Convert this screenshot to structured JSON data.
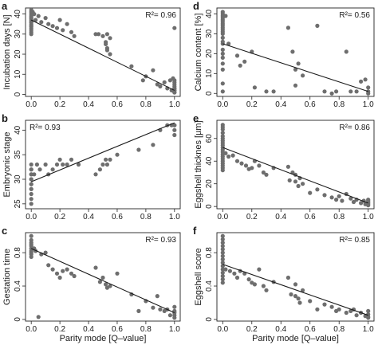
{
  "figure": {
    "x_tick_labels": [
      "0.0",
      "0.2",
      "0.4",
      "0.6",
      "0.8",
      "1.0"
    ],
    "x_label": "Parity mode [Q–value]"
  },
  "chart_data": [
    {
      "type": "scatter",
      "panel_letter": "a",
      "ylabel": "Incubation days [N]",
      "xlabel": "",
      "r2_label": "R²= 0.96",
      "xlim": [
        -0.04,
        1.04
      ],
      "ylim": [
        -1,
        43
      ],
      "yticks": [
        0,
        10,
        20,
        30,
        40
      ],
      "x_ticks": [
        0.0,
        0.2,
        0.4,
        0.6,
        0.8,
        1.0
      ],
      "grid": false,
      "trend_line": {
        "x": [
          0.0,
          1.0
        ],
        "y": [
          37,
          2
        ]
      },
      "points": {
        "x": [
          0.0,
          0.0,
          0.0,
          0.0,
          0.0,
          0.0,
          0.0,
          0.0,
          0.0,
          0.0,
          0.0,
          0.0,
          0.0,
          0.0,
          0.0,
          0.0,
          0.01,
          0.02,
          0.03,
          0.05,
          0.07,
          0.1,
          0.12,
          0.15,
          0.18,
          0.2,
          0.22,
          0.25,
          0.28,
          0.3,
          0.45,
          0.47,
          0.5,
          0.52,
          0.53,
          0.55,
          0.52,
          0.53,
          0.53,
          0.55,
          0.7,
          0.78,
          0.8,
          0.85,
          0.88,
          0.9,
          0.93,
          0.95,
          0.97,
          0.98,
          0.99,
          1.0,
          1.0,
          1.0,
          1.0,
          1.0,
          1.0,
          1.0,
          1.0,
          1.0,
          1.0,
          1.0
        ],
        "y": [
          42,
          41,
          40,
          39,
          38,
          37,
          36,
          35,
          34,
          33,
          32,
          31,
          30,
          38,
          36,
          34,
          41,
          40,
          37,
          39,
          36,
          38,
          35,
          34,
          33,
          37,
          32,
          35,
          31,
          29,
          30,
          30,
          29,
          25,
          23,
          20,
          26,
          22,
          30,
          28,
          14,
          7,
          9,
          12,
          5,
          4,
          6,
          3,
          7,
          2,
          8,
          4,
          3,
          2,
          1,
          5,
          6,
          2,
          3,
          1,
          7,
          33
        ]
      }
    },
    {
      "type": "scatter",
      "panel_letter": "d",
      "ylabel": "Calcium content [%]",
      "xlabel": "",
      "r2_label": "R²= 0.56",
      "xlim": [
        -0.04,
        1.04
      ],
      "ylim": [
        -1.5,
        43
      ],
      "yticks": [
        0,
        10,
        20,
        30,
        40
      ],
      "x_ticks": [
        0.0,
        0.2,
        0.4,
        0.6,
        0.8,
        1.0
      ],
      "grid": false,
      "trend_line": {
        "x": [
          0.0,
          1.0
        ],
        "y": [
          25,
          1
        ]
      },
      "points": {
        "x": [
          0.0,
          0.0,
          0.0,
          0.0,
          0.0,
          0.0,
          0.0,
          0.0,
          0.0,
          0.0,
          0.0,
          0.0,
          0.0,
          0.0,
          0.0,
          0.0,
          0.0,
          0.0,
          0.0,
          0.0,
          0.0,
          0.0,
          0.02,
          0.04,
          0.1,
          0.12,
          0.15,
          0.2,
          0.22,
          0.3,
          0.35,
          0.45,
          0.48,
          0.5,
          0.5,
          0.52,
          0.55,
          0.65,
          0.7,
          0.75,
          0.78,
          0.85,
          0.88,
          0.92,
          0.95,
          0.98,
          1.0,
          1.0,
          1.0
        ],
        "y": [
          41,
          40,
          39,
          38,
          37,
          36,
          35,
          34,
          33,
          32,
          31,
          30,
          28,
          26,
          25,
          22,
          20,
          18,
          15,
          12,
          5,
          1,
          39,
          25,
          19,
          14,
          16,
          21,
          3,
          1,
          1,
          33,
          21,
          12,
          4,
          15,
          9,
          34,
          1,
          0,
          1,
          21,
          1,
          1,
          6,
          7,
          3,
          1,
          0
        ]
      }
    },
    {
      "type": "scatter",
      "panel_letter": "b",
      "ylabel": "Embryonic stage",
      "xlabel": "",
      "r2_label": "R²= 0.93",
      "xlim": [
        -0.04,
        1.04
      ],
      "ylim": [
        24,
        42
      ],
      "yticks": [
        25,
        30,
        35,
        40
      ],
      "x_ticks": [
        0.0,
        0.2,
        0.4,
        0.6,
        0.8,
        1.0
      ],
      "grid": false,
      "trend_line": {
        "x": [
          0.0,
          1.0
        ],
        "y": [
          29.5,
          41.5
        ]
      },
      "points": {
        "x": [
          0.0,
          0.0,
          0.0,
          0.0,
          0.0,
          0.0,
          0.0,
          0.0,
          0.0,
          0.0,
          0.0,
          0.0,
          0.0,
          0.0,
          0.02,
          0.04,
          0.06,
          0.1,
          0.12,
          0.15,
          0.18,
          0.2,
          0.22,
          0.25,
          0.28,
          0.33,
          0.45,
          0.48,
          0.5,
          0.52,
          0.53,
          0.55,
          0.6,
          0.75,
          0.85,
          0.9,
          0.95,
          0.98,
          1.0,
          1.0,
          1.0,
          1.0
        ],
        "y": [
          25,
          26,
          27,
          28,
          29,
          30,
          31,
          32,
          33,
          30,
          29,
          28,
          31,
          32,
          31,
          33,
          32,
          33,
          31,
          32,
          33,
          34,
          33,
          33,
          34,
          33,
          31,
          32,
          33,
          34,
          33,
          34,
          35,
          36,
          37,
          40,
          41,
          41,
          41,
          40,
          41,
          39
        ]
      }
    },
    {
      "type": "scatter",
      "panel_letter": "e",
      "ylabel": "Eggshell thicknes [µm]",
      "xlabel": "",
      "r2_label": "R²= 0.86",
      "xlim": [
        -0.04,
        1.04
      ],
      "ylim": [
        -2,
        76
      ],
      "yticks": [
        0,
        20,
        40,
        60
      ],
      "x_ticks": [
        0.0,
        0.2,
        0.4,
        0.6,
        0.8,
        1.0
      ],
      "grid": false,
      "trend_line": {
        "x": [
          0.0,
          1.0
        ],
        "y": [
          52,
          3
        ]
      },
      "points": {
        "x": [
          0.0,
          0.0,
          0.0,
          0.0,
          0.0,
          0.0,
          0.0,
          0.0,
          0.0,
          0.0,
          0.0,
          0.0,
          0.0,
          0.0,
          0.0,
          0.0,
          0.0,
          0.0,
          0.0,
          0.0,
          0.02,
          0.04,
          0.07,
          0.1,
          0.13,
          0.16,
          0.18,
          0.2,
          0.22,
          0.25,
          0.28,
          0.3,
          0.35,
          0.45,
          0.46,
          0.48,
          0.5,
          0.5,
          0.52,
          0.53,
          0.55,
          0.6,
          0.65,
          0.7,
          0.75,
          0.78,
          0.8,
          0.82,
          0.85,
          0.88,
          0.9,
          0.92,
          0.95,
          0.97,
          0.98,
          1.0,
          1.0,
          1.0,
          1.0,
          1.0,
          1.0
        ],
        "y": [
          72,
          70,
          68,
          65,
          62,
          60,
          58,
          56,
          54,
          52,
          50,
          48,
          46,
          44,
          42,
          40,
          38,
          36,
          34,
          32,
          47,
          44,
          45,
          40,
          38,
          36,
          33,
          34,
          40,
          36,
          30,
          28,
          34,
          35,
          23,
          30,
          28,
          22,
          18,
          25,
          20,
          12,
          15,
          10,
          8,
          6,
          9,
          5,
          11,
          7,
          4,
          6,
          3,
          5,
          2,
          4,
          6,
          2,
          3,
          1,
          5
        ]
      }
    },
    {
      "type": "scatter",
      "panel_letter": "c",
      "ylabel": "Gestation time",
      "xlabel": "Parity mode [Q–value]",
      "r2_label": "R²= 0.93",
      "xlim": [
        -0.04,
        1.04
      ],
      "ylim": [
        -0.02,
        1.04
      ],
      "yticks": [
        0.0,
        0.4,
        0.8
      ],
      "x_ticks": [
        0.0,
        0.2,
        0.4,
        0.6,
        0.8,
        1.0
      ],
      "grid": false,
      "trend_line": {
        "x": [
          0.0,
          1.0
        ],
        "y": [
          0.85,
          0.08
        ]
      },
      "points": {
        "x": [
          0.0,
          0.0,
          0.0,
          0.0,
          0.0,
          0.0,
          0.0,
          0.0,
          0.0,
          0.0,
          0.02,
          0.03,
          0.05,
          0.07,
          0.1,
          0.12,
          0.15,
          0.18,
          0.2,
          0.22,
          0.25,
          0.28,
          0.3,
          0.45,
          0.48,
          0.5,
          0.52,
          0.53,
          0.55,
          0.6,
          0.7,
          0.75,
          0.8,
          0.85,
          0.88,
          0.9,
          0.93,
          0.95,
          0.97,
          1.0,
          1.0,
          1.0,
          1.0,
          1.0
        ],
        "y": [
          1.0,
          0.95,
          0.92,
          0.9,
          0.88,
          0.85,
          0.82,
          0.8,
          0.78,
          0.75,
          0.85,
          0.82,
          0.03,
          0.78,
          0.8,
          0.65,
          0.6,
          0.55,
          0.5,
          0.58,
          0.6,
          0.55,
          0.52,
          0.62,
          0.45,
          0.5,
          0.42,
          0.38,
          0.4,
          0.55,
          0.3,
          0.1,
          0.22,
          0.14,
          0.28,
          0.12,
          0.1,
          0.12,
          0.05,
          0.05,
          0.1,
          0.02,
          0.15,
          0.08
        ]
      }
    },
    {
      "type": "scatter",
      "panel_letter": "f",
      "ylabel": "Eggshell score",
      "xlabel": "Parity mode [Q–value]",
      "r2_label": "R²= 0.85",
      "xlim": [
        -0.04,
        1.04
      ],
      "ylim": [
        -0.02,
        1.04
      ],
      "yticks": [
        0.0,
        0.4,
        0.8
      ],
      "x_ticks": [
        0.0,
        0.2,
        0.4,
        0.6,
        0.8,
        1.0
      ],
      "grid": false,
      "trend_line": {
        "x": [
          0.0,
          1.0
        ],
        "y": [
          0.66,
          0.05
        ]
      },
      "points": {
        "x": [
          0.0,
          0.0,
          0.0,
          0.0,
          0.0,
          0.0,
          0.0,
          0.0,
          0.0,
          0.0,
          0.0,
          0.0,
          0.0,
          0.0,
          0.0,
          0.02,
          0.05,
          0.08,
          0.1,
          0.12,
          0.15,
          0.18,
          0.2,
          0.22,
          0.25,
          0.28,
          0.3,
          0.35,
          0.45,
          0.47,
          0.5,
          0.5,
          0.52,
          0.53,
          0.55,
          0.6,
          0.65,
          0.7,
          0.75,
          0.78,
          0.8,
          0.85,
          0.88,
          0.9,
          0.92,
          0.95,
          0.98,
          1.0,
          1.0,
          1.0,
          1.0
        ],
        "y": [
          1.0,
          0.96,
          0.92,
          0.88,
          0.84,
          0.8,
          0.76,
          0.72,
          0.68,
          0.64,
          0.6,
          0.56,
          0.52,
          0.48,
          0.44,
          0.6,
          0.58,
          0.55,
          0.5,
          0.58,
          0.55,
          0.48,
          0.44,
          0.42,
          0.6,
          0.4,
          0.35,
          0.45,
          0.5,
          0.3,
          0.42,
          0.28,
          0.25,
          0.2,
          0.35,
          0.22,
          0.12,
          0.18,
          0.15,
          0.1,
          0.12,
          0.08,
          0.1,
          0.12,
          0.05,
          0.08,
          0.04,
          0.02,
          0.06,
          0.03,
          0.1
        ]
      }
    }
  ]
}
